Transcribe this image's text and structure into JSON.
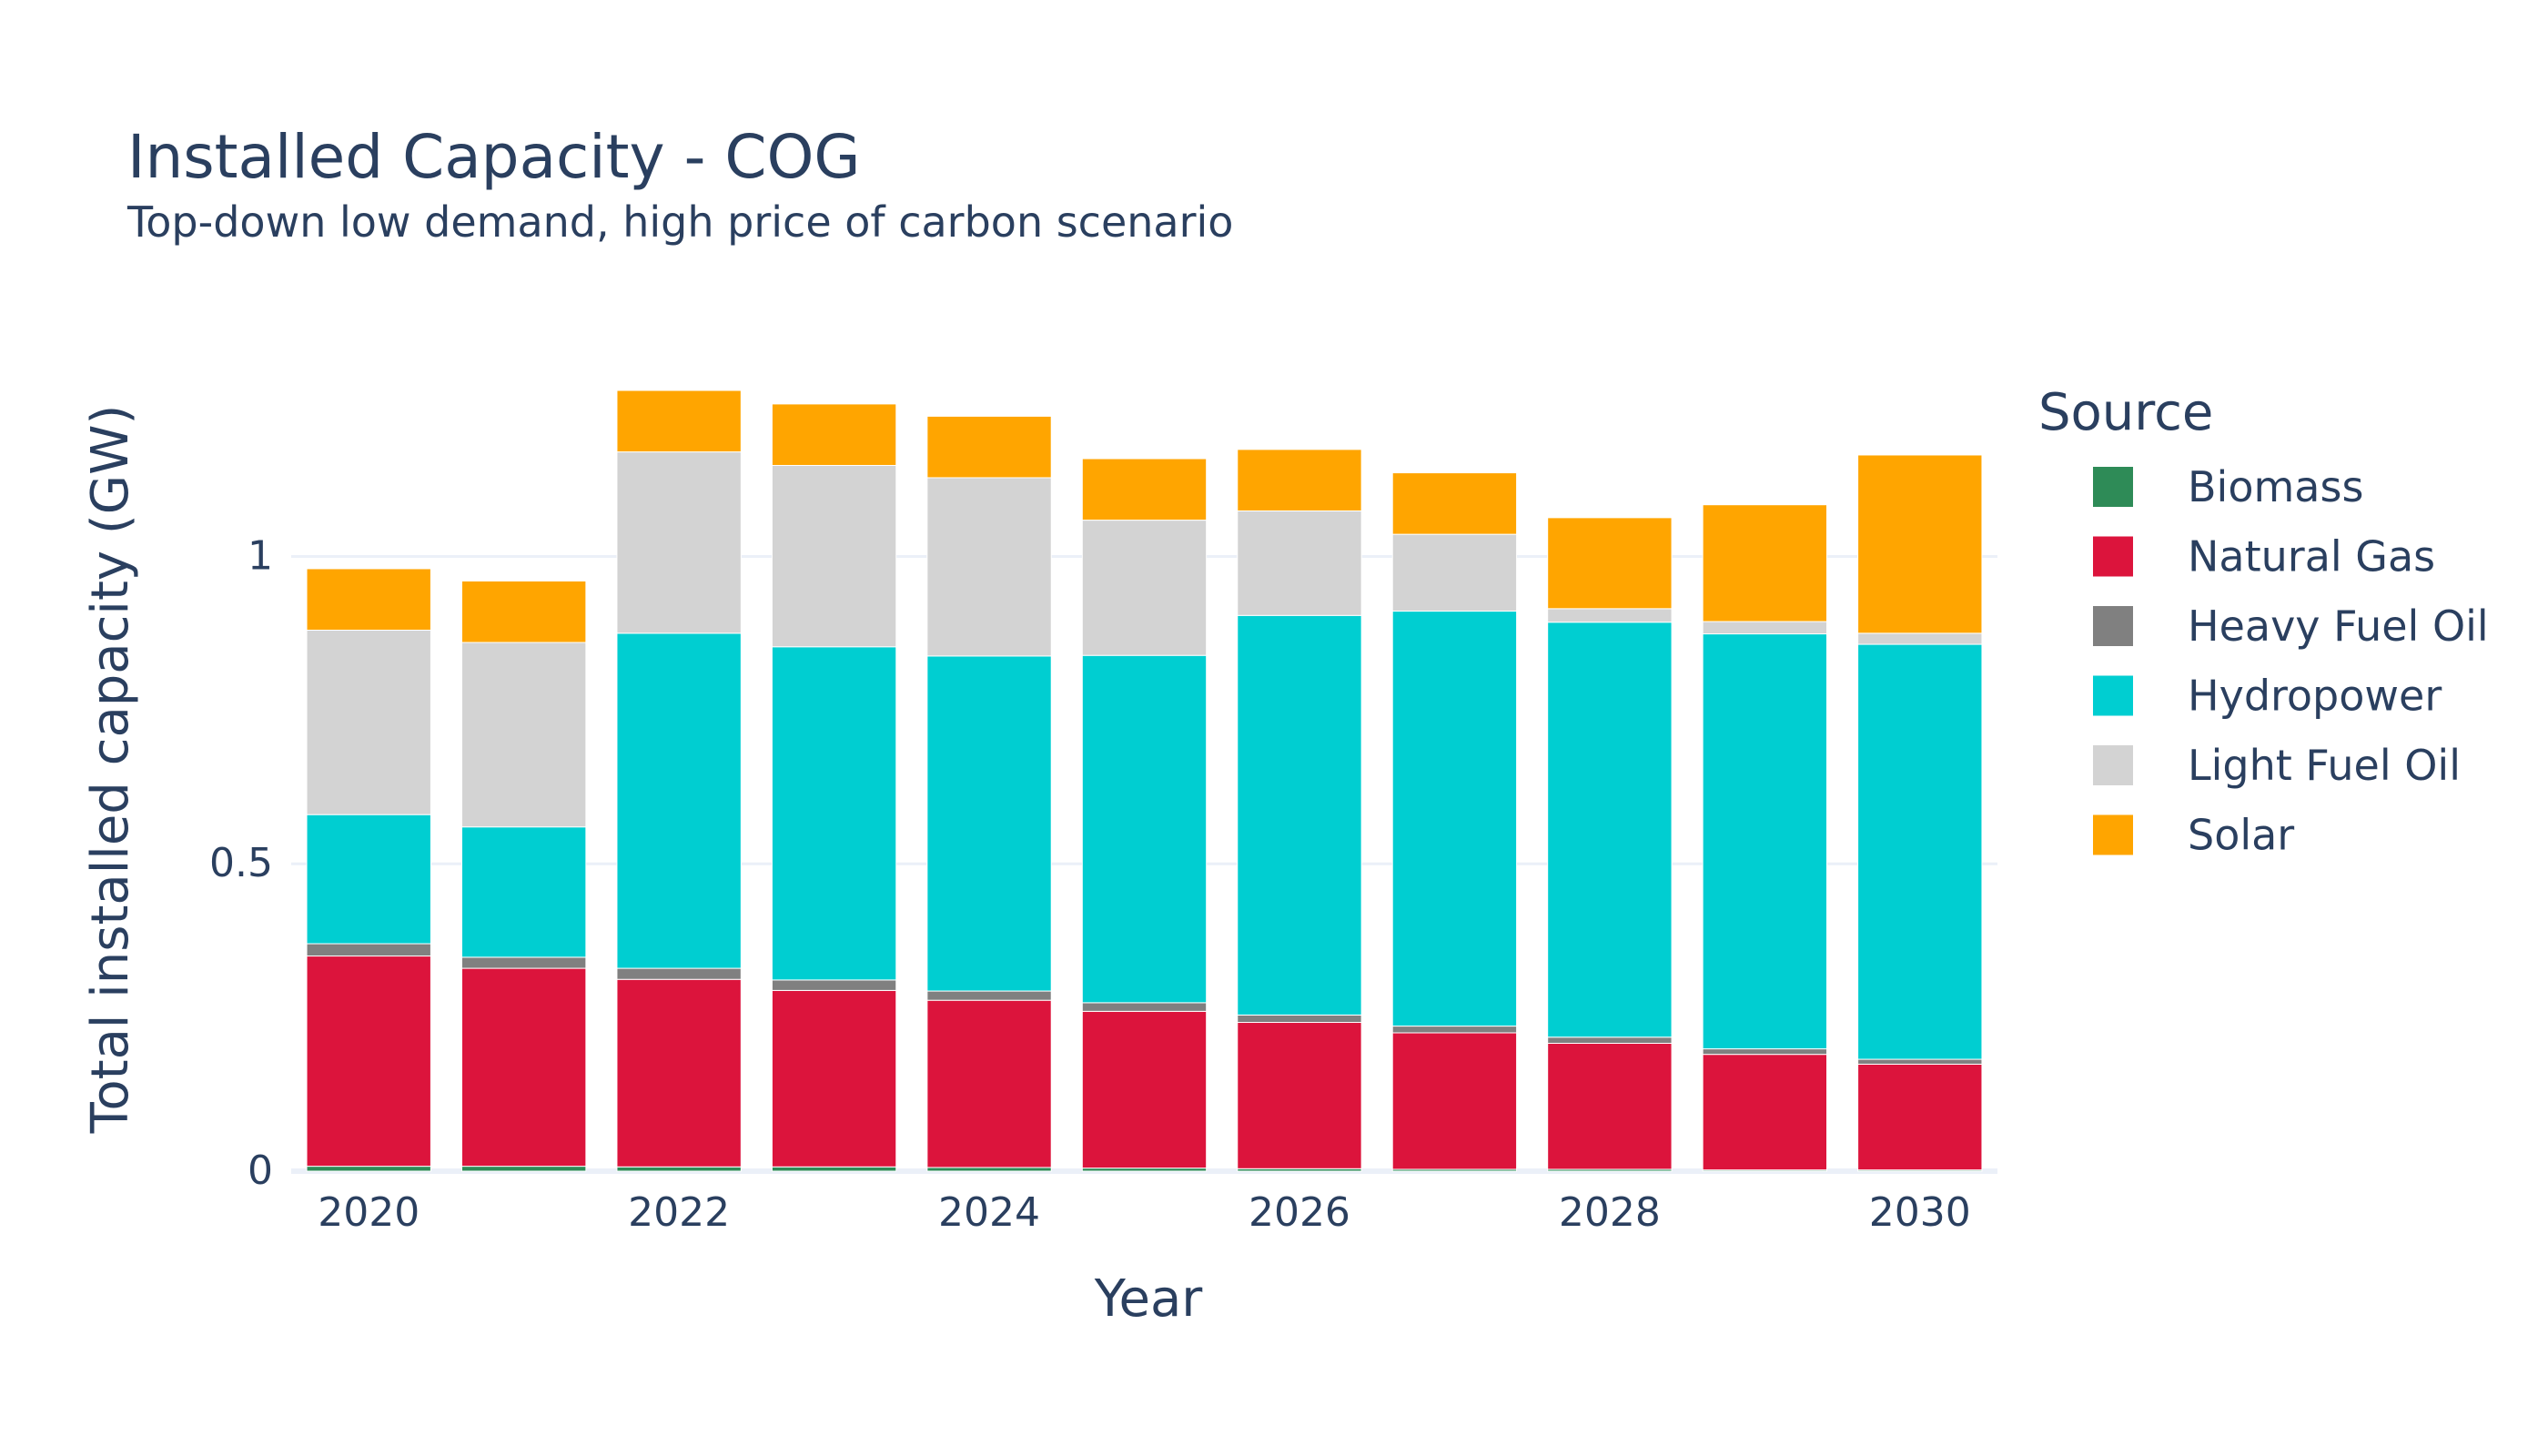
{
  "chart_data": {
    "type": "bar",
    "stacked": true,
    "title": "Installed Capacity - COG",
    "subtitle": "Top-down low demand, high price of carbon scenario",
    "xlabel": "Year",
    "ylabel": "Total installed capacity (GW)",
    "ylim": [
      0,
      1.35
    ],
    "y_ticks": [
      0,
      0.5,
      1
    ],
    "y_tick_labels": [
      "0",
      "0.5",
      "1"
    ],
    "x_ticks": [
      2020,
      2022,
      2024,
      2026,
      2028,
      2030
    ],
    "x_tick_labels": [
      "2020",
      "2022",
      "2024",
      "2026",
      "2028",
      "2030"
    ],
    "grid": true,
    "legend_title": "Source",
    "legend_position": "right",
    "categories": [
      2020,
      2021,
      2022,
      2023,
      2024,
      2025,
      2026,
      2027,
      2028,
      2029,
      2030
    ],
    "series": [
      {
        "name": "Biomass",
        "color": "#2e8b57",
        "values": [
          0.008,
          0.008,
          0.007,
          0.007,
          0.006,
          0.005,
          0.004,
          0.003,
          0.003,
          0.002,
          0.002
        ]
      },
      {
        "name": "Natural Gas",
        "color": "#dc143c",
        "values": [
          0.342,
          0.322,
          0.305,
          0.287,
          0.272,
          0.255,
          0.238,
          0.222,
          0.205,
          0.188,
          0.172
        ]
      },
      {
        "name": "Heavy Fuel Oil",
        "color": "#808080",
        "values": [
          0.02,
          0.018,
          0.018,
          0.017,
          0.015,
          0.014,
          0.012,
          0.011,
          0.01,
          0.009,
          0.008
        ]
      },
      {
        "name": "Hydropower",
        "color": "#00ced1",
        "values": [
          0.21,
          0.212,
          0.545,
          0.542,
          0.545,
          0.565,
          0.65,
          0.675,
          0.675,
          0.675,
          0.675
        ]
      },
      {
        "name": "Light Fuel Oil",
        "color": "#d3d3d3",
        "values": [
          0.3,
          0.3,
          0.295,
          0.295,
          0.29,
          0.22,
          0.17,
          0.125,
          0.022,
          0.02,
          0.018
        ]
      },
      {
        "name": "Solar",
        "color": "#ffa500",
        "values": [
          0.1,
          0.1,
          0.1,
          0.1,
          0.1,
          0.1,
          0.1,
          0.1,
          0.148,
          0.19,
          0.29
        ]
      }
    ]
  }
}
